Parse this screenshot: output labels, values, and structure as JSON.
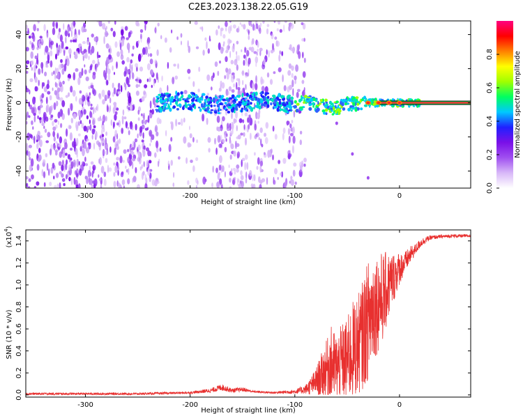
{
  "title": "C2E3.2023.138.22.05.G19",
  "colorbar": {
    "label": "Normalized spectral amplitude",
    "ticks": [
      "0.0",
      "0.2",
      "0.4",
      "0.6",
      "0.8"
    ],
    "tick_values": [
      0.0,
      0.2,
      0.4,
      0.6,
      0.8
    ],
    "range": [
      0,
      1
    ],
    "colormap": [
      "#ffffff",
      "#d8b8f8",
      "#a050f0",
      "#7a10e8",
      "#2020ff",
      "#00c8ff",
      "#00ff60",
      "#a0ff00",
      "#ffff00",
      "#ff8000",
      "#ff0000",
      "#ff0080"
    ]
  },
  "chart_data": [
    {
      "type": "heatmap",
      "title": "",
      "xlabel": "Height of straight line (km)",
      "ylabel": "Frequency (Hz)",
      "xlim": [
        -357,
        68
      ],
      "ylim": [
        -50,
        48
      ],
      "xticks": [
        "-300",
        "-200",
        "-100",
        "0"
      ],
      "xtick_values": [
        -300,
        -200,
        -100,
        0
      ],
      "yticks": [
        "-40",
        "-20",
        "0",
        "20",
        "40"
      ],
      "ytick_values": [
        -40,
        -20,
        0,
        20,
        40
      ],
      "features": {
        "noise_region_x": [
          -357,
          -100
        ],
        "noise_sparse_x": [
          -100,
          -90
        ],
        "signal_band_center_hz": 0,
        "signal_band_x": [
          -232,
          68
        ],
        "saturated_line_x": [
          -30,
          68
        ],
        "trailing_streak": [
          [
            -60,
            -12
          ],
          [
            -45,
            -30
          ],
          [
            -30,
            -44
          ]
        ]
      }
    },
    {
      "type": "line",
      "title": "",
      "xlabel": "Height of straight line (km)",
      "ylabel": "SNR (10 * v/v)",
      "y_multiplier": "(x10",
      "y_multiplier_exp": "4",
      "xlim": [
        -357,
        68
      ],
      "ylim": [
        -0.02,
        1.5
      ],
      "xticks": [
        "-300",
        "-200",
        "-100",
        "0"
      ],
      "xtick_values": [
        -300,
        -200,
        -100,
        0
      ],
      "yticks": [
        "0.0",
        "0.2",
        "0.4",
        "0.6",
        "0.8",
        "1.0",
        "1.2",
        "1.4"
      ],
      "ytick_values": [
        0.0,
        0.2,
        0.4,
        0.6,
        0.8,
        1.0,
        1.2,
        1.4
      ],
      "series": [
        {
          "color": "#e8302f",
          "envelope_x": [
            -357,
            -250,
            -200,
            -180,
            -170,
            -160,
            -150,
            -140,
            -120,
            -100,
            -90,
            -85,
            -80,
            -75,
            -70,
            -65,
            -60,
            -55,
            -50,
            -45,
            -40,
            -35,
            -30,
            -25,
            -20,
            -15,
            -10,
            -5,
            0,
            5,
            10,
            15,
            20,
            25,
            30,
            40,
            50,
            60,
            68
          ],
          "envelope_mean": [
            0.01,
            0.01,
            0.02,
            0.04,
            0.07,
            0.04,
            0.05,
            0.03,
            0.02,
            0.03,
            0.05,
            0.08,
            0.12,
            0.17,
            0.24,
            0.28,
            0.25,
            0.3,
            0.32,
            0.4,
            0.45,
            0.55,
            0.68,
            0.8,
            0.85,
            0.9,
            1.0,
            1.08,
            1.15,
            1.2,
            1.27,
            1.32,
            1.38,
            1.41,
            1.43,
            1.44,
            1.445,
            1.445,
            1.445
          ],
          "envelope_amp": [
            0.01,
            0.01,
            0.01,
            0.02,
            0.03,
            0.02,
            0.02,
            0.01,
            0.01,
            0.02,
            0.04,
            0.08,
            0.12,
            0.2,
            0.25,
            0.35,
            0.3,
            0.35,
            0.38,
            0.45,
            0.45,
            0.5,
            0.55,
            0.5,
            0.45,
            0.4,
            0.3,
            0.22,
            0.15,
            0.1,
            0.08,
            0.05,
            0.04,
            0.03,
            0.02,
            0.015,
            0.015,
            0.015,
            0.015
          ]
        }
      ]
    }
  ]
}
